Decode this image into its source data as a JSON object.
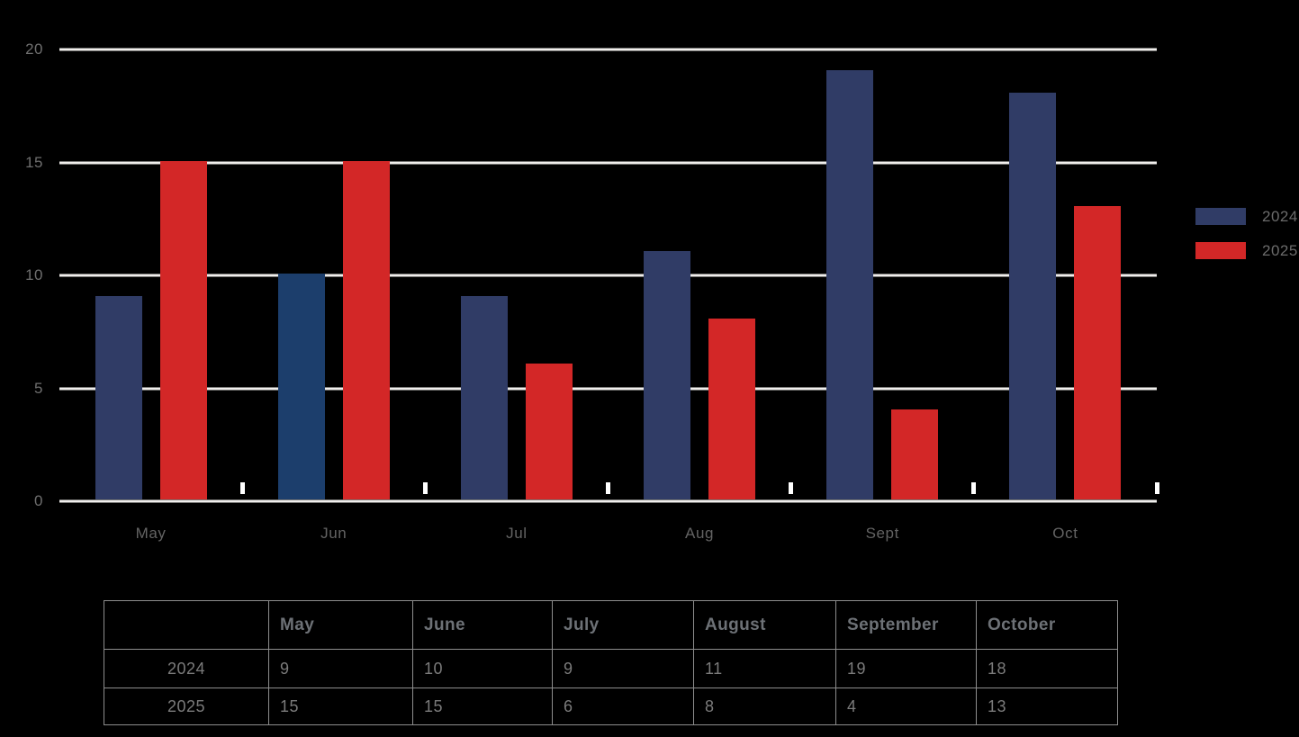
{
  "chart_data": {
    "type": "bar",
    "title": "",
    "xlabel": "",
    "ylabel": "",
    "categories": [
      "May",
      "Jun",
      "Jul",
      "Aug",
      "Sept",
      "Oct"
    ],
    "series": [
      {
        "name": "2024",
        "color": "#303C66",
        "values": [
          9,
          10,
          9,
          11,
          19,
          18
        ],
        "highlight_index": 1,
        "highlight_color": "#1C3E6C"
      },
      {
        "name": "2025",
        "color": "#D32727",
        "values": [
          15,
          15,
          6,
          8,
          4,
          13
        ]
      }
    ],
    "ylim": [
      0,
      20
    ],
    "yticks": [
      0,
      5,
      10,
      15,
      20
    ],
    "grid": true,
    "legend_position": "right"
  },
  "table": {
    "headers": [
      "",
      "May",
      "June",
      "July",
      "August",
      "September",
      "October"
    ],
    "rows": [
      {
        "label": "2024",
        "values": [
          "9",
          "10",
          "9",
          "11",
          "19",
          "18"
        ]
      },
      {
        "label": "2025",
        "values": [
          "15",
          "15",
          "6",
          "8",
          "4",
          "13"
        ]
      }
    ]
  },
  "colors": {
    "background": "#000000",
    "series_2024": "#303C66",
    "series_2024_highlight": "#1C3E6C",
    "series_2025": "#D32727",
    "gridline": "#F1EFED",
    "axis_tick": "#FFFFFF",
    "axis_text": "#6F6F6F",
    "legend_text": "#6B6B6B",
    "table_border": "#8D8D8D",
    "table_header_text": "#6D7176",
    "table_value_text": "#7B7B7B"
  }
}
